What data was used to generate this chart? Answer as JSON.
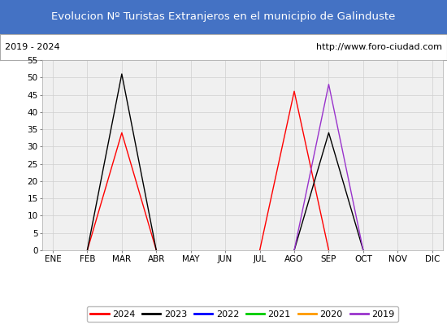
{
  "title": "Evolucion Nº Turistas Extranjeros en el municipio de Galinduste",
  "title_bg_color": "#4472c4",
  "title_text_color": "#ffffff",
  "subtitle_left": "2019 - 2024",
  "subtitle_right": "http://www.foro-ciudad.com",
  "subtitle_bg_color": "#ffffff",
  "subtitle_text_color": "#000000",
  "months": [
    "ENE",
    "FEB",
    "MAR",
    "ABR",
    "MAY",
    "JUN",
    "JUL",
    "AGO",
    "SEP",
    "OCT",
    "NOV",
    "DIC"
  ],
  "ylim": [
    0,
    55
  ],
  "yticks": [
    0,
    5,
    10,
    15,
    20,
    25,
    30,
    35,
    40,
    45,
    50,
    55
  ],
  "series": {
    "2024": {
      "color": "#ff0000",
      "segments": [
        [
          1,
          0,
          2,
          34,
          3,
          0
        ],
        [
          6,
          0,
          7,
          46,
          8,
          0
        ]
      ]
    },
    "2023": {
      "color": "#000000",
      "segments": [
        [
          1,
          0,
          2,
          51,
          3,
          0
        ],
        [
          7,
          0,
          8,
          34,
          9,
          0
        ]
      ]
    },
    "2022": {
      "color": "#0000ff",
      "segments": []
    },
    "2021": {
      "color": "#00cc00",
      "segments": []
    },
    "2020": {
      "color": "#ff9900",
      "segments": []
    },
    "2019": {
      "color": "#9933cc",
      "segments": [
        [
          7,
          0,
          8,
          48,
          9,
          0
        ]
      ]
    }
  },
  "legend_order": [
    "2024",
    "2023",
    "2022",
    "2021",
    "2020",
    "2019"
  ],
  "grid_color": "#d0d0d0",
  "axis_bg_color": "#f0f0f0",
  "linewidth": 1.0
}
